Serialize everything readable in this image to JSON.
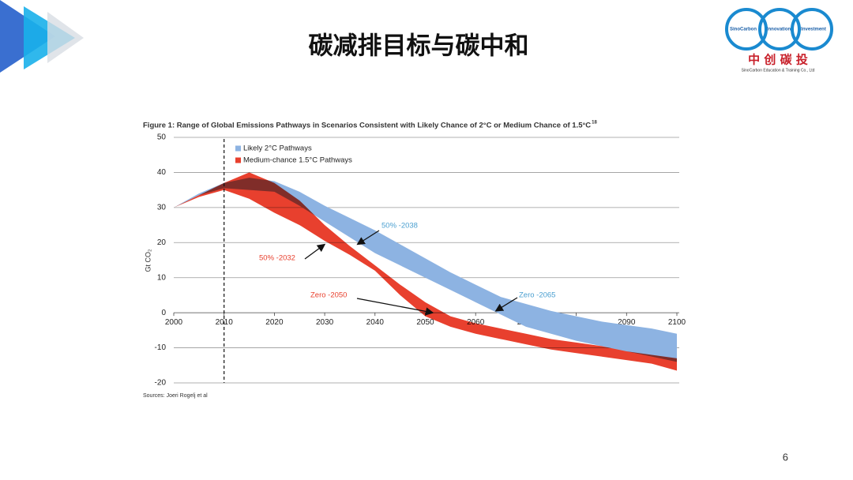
{
  "slide": {
    "title": "碳减排目标与碳中和",
    "page_number": "6",
    "logo": {
      "words": [
        "SinoCarbon",
        "Innovation",
        "Investment"
      ],
      "name": "中 创 碳 投",
      "company": "SinoCarbon Education & Training Co., Ltd"
    }
  },
  "chart_data": {
    "type": "band",
    "title": "Figure 1: Range of Global Emissions Pathways in Scenarios Consistent with Likely Chance of 2°C or Medium Chance of 1.5°C",
    "title_note": "18",
    "source": "Sources: Joeri Rogelj et al",
    "ylabel": "Gt CO₂",
    "x": [
      2000,
      2005,
      2010,
      2015,
      2020,
      2025,
      2030,
      2035,
      2040,
      2045,
      2050,
      2055,
      2060,
      2065,
      2070,
      2075,
      2080,
      2085,
      2090,
      2095,
      2100
    ],
    "series": [
      {
        "name": "Likely 2°C Pathways",
        "color": "#8db3e2",
        "lower": [
          30,
          33.5,
          35.5,
          35,
          34.5,
          30.5,
          26,
          21.5,
          17,
          13.5,
          10,
          6.5,
          3,
          -0.5,
          -4,
          -6,
          -8,
          -9.5,
          -11,
          -12.5,
          -14
        ],
        "upper": [
          30,
          34,
          37,
          38.5,
          37.5,
          34.5,
          30.5,
          27,
          23.5,
          19.5,
          15.5,
          11.5,
          8,
          4.5,
          2.5,
          0.5,
          -1,
          -2.5,
          -3.5,
          -4.5,
          -6
        ]
      },
      {
        "name": "Medium-chance 1.5°C Pathways",
        "color": "#e8402e",
        "lower": [
          30,
          33,
          35,
          32.5,
          28.5,
          25,
          20.5,
          16.5,
          12,
          5,
          -1,
          -4,
          -6,
          -7.5,
          -9,
          -10.5,
          -11.5,
          -12.5,
          -13.5,
          -14.5,
          -16.5
        ],
        "upper": [
          30,
          33.5,
          37,
          40,
          37,
          32,
          25,
          19,
          13.5,
          8,
          3,
          -1,
          -3,
          -4.5,
          -6,
          -7.5,
          -8.5,
          -9.5,
          -11,
          -12,
          -13
        ]
      }
    ],
    "xlim": [
      2000,
      2100
    ],
    "xticks": [
      2000,
      2010,
      2020,
      2030,
      2040,
      2050,
      2060,
      2070,
      2080,
      2090,
      2100
    ],
    "ylim": [
      -20,
      50
    ],
    "yticks": [
      -20,
      -10,
      0,
      10,
      20,
      30,
      40,
      50
    ],
    "grid": true,
    "legend": "upper left",
    "vline": 2010,
    "annotations": [
      {
        "text": "50% -2038",
        "color": "#4a9fd0",
        "point": [
          2036.5,
          19.5
        ]
      },
      {
        "text": "50% -2032",
        "color": "#e8402e",
        "point": [
          2030,
          19.5
        ]
      },
      {
        "text": "Zero -2050",
        "color": "#e8402e",
        "point": [
          2051.5,
          0
        ]
      },
      {
        "text": "Zero -2065",
        "color": "#4a9fd0",
        "point": [
          2064,
          0.5
        ]
      }
    ]
  }
}
